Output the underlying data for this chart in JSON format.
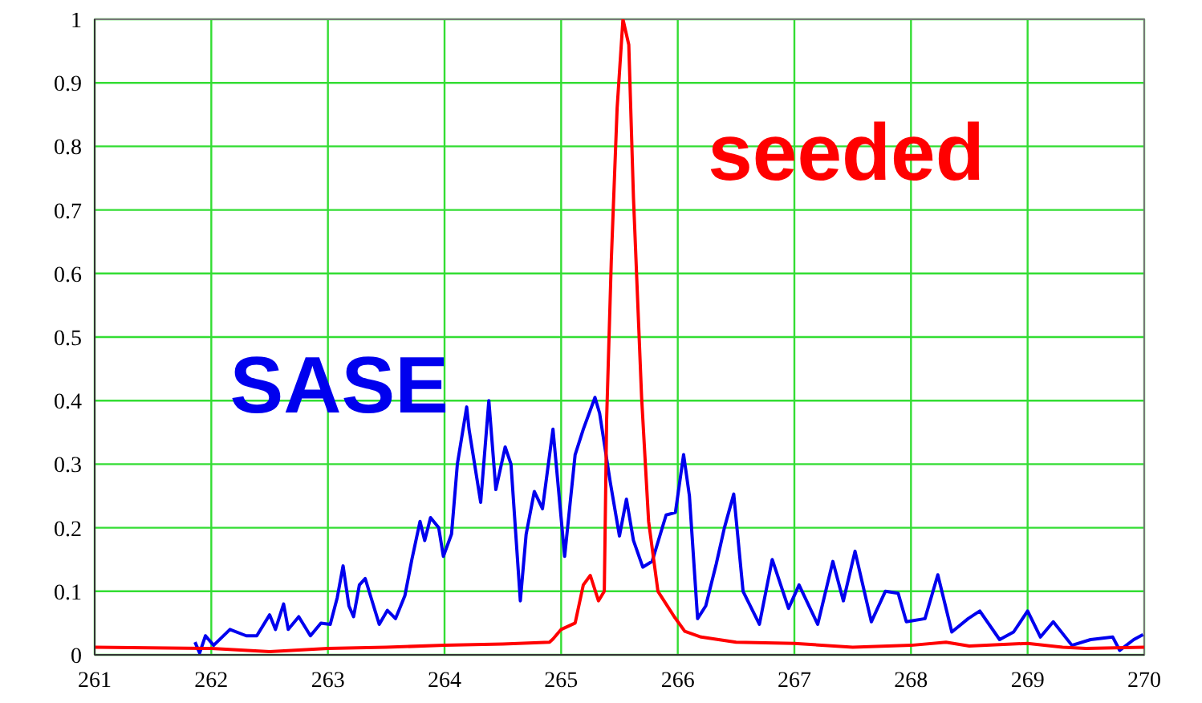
{
  "chart_data": {
    "type": "line",
    "xlim": [
      261,
      270
    ],
    "xticks": [
      261,
      262,
      263,
      264,
      265,
      266,
      267,
      268,
      269,
      270
    ],
    "ylim": [
      0,
      1
    ],
    "yticks": [
      0,
      0.1,
      0.2,
      0.3,
      0.4,
      0.5,
      0.6,
      0.7,
      0.8,
      0.9,
      1
    ],
    "grid": true,
    "marker": "none",
    "line_style": "solid",
    "series": [
      {
        "name": "SASE",
        "color": "#0000ee",
        "x": [
          261.86,
          261.9,
          261.95,
          262.02,
          262.16,
          262.3,
          262.39,
          262.5,
          262.55,
          262.62,
          262.66,
          262.75,
          262.85,
          262.94,
          263.02,
          263.08,
          263.13,
          263.18,
          263.22,
          263.27,
          263.32,
          263.37,
          263.44,
          263.51,
          263.58,
          263.66,
          263.72,
          263.79,
          263.83,
          263.88,
          263.95,
          263.99,
          264.06,
          264.11,
          264.19,
          264.21,
          264.31,
          264.38,
          264.44,
          264.52,
          264.57,
          264.65,
          264.7,
          264.77,
          264.84,
          264.93,
          265.03,
          265.12,
          265.19,
          265.29,
          265.33,
          265.42,
          265.5,
          265.56,
          265.62,
          265.7,
          265.78,
          265.9,
          265.98,
          266.05,
          266.1,
          266.17,
          266.24,
          266.33,
          266.4,
          266.48,
          266.56,
          266.7,
          266.81,
          266.95,
          267.04,
          267.2,
          267.33,
          267.42,
          267.52,
          267.66,
          267.78,
          267.89,
          267.96,
          268.12,
          268.23,
          268.35,
          268.49,
          268.59,
          268.76,
          268.88,
          269,
          269.11,
          269.22,
          269.38,
          269.54,
          269.73,
          269.79,
          269.91,
          269.99
        ],
        "values": [
          0.02,
          0.003,
          0.03,
          0.015,
          0.04,
          0.03,
          0.03,
          0.063,
          0.04,
          0.08,
          0.04,
          0.06,
          0.03,
          0.05,
          0.048,
          0.09,
          0.14,
          0.077,
          0.06,
          0.11,
          0.12,
          0.09,
          0.048,
          0.07,
          0.057,
          0.093,
          0.15,
          0.21,
          0.18,
          0.216,
          0.2,
          0.155,
          0.19,
          0.3,
          0.39,
          0.355,
          0.24,
          0.4,
          0.26,
          0.327,
          0.3,
          0.085,
          0.19,
          0.257,
          0.23,
          0.355,
          0.155,
          0.315,
          0.355,
          0.405,
          0.38,
          0.273,
          0.187,
          0.245,
          0.18,
          0.138,
          0.147,
          0.22,
          0.224,
          0.315,
          0.25,
          0.057,
          0.077,
          0.143,
          0.2,
          0.253,
          0.1,
          0.048,
          0.15,
          0.073,
          0.11,
          0.048,
          0.147,
          0.085,
          0.163,
          0.052,
          0.1,
          0.097,
          0.052,
          0.057,
          0.126,
          0.036,
          0.057,
          0.069,
          0.024,
          0.036,
          0.069,
          0.028,
          0.052,
          0.015,
          0.024,
          0.028,
          0.007,
          0.024,
          0.032
        ]
      },
      {
        "name": "seeded",
        "color": "#ff0000",
        "x": [
          261,
          262,
          262.5,
          263,
          263.5,
          264,
          264.5,
          264.9,
          264.93,
          265,
          265.12,
          265.19,
          265.25,
          265.32,
          265.37,
          265.39,
          265.43,
          265.48,
          265.53,
          265.58,
          265.62,
          265.69,
          265.75,
          265.83,
          265.97,
          266.06,
          266.2,
          266.5,
          267,
          267.5,
          268,
          268.3,
          268.5,
          269,
          269.3,
          269.5,
          270
        ],
        "values": [
          0.012,
          0.01,
          0.005,
          0.01,
          0.012,
          0.015,
          0.017,
          0.02,
          0.025,
          0.04,
          0.05,
          0.11,
          0.125,
          0.085,
          0.1,
          0.37,
          0.62,
          0.86,
          1,
          0.96,
          0.72,
          0.405,
          0.21,
          0.1,
          0.06,
          0.037,
          0.028,
          0.02,
          0.018,
          0.012,
          0.015,
          0.02,
          0.014,
          0.018,
          0.012,
          0.01,
          0.012
        ]
      }
    ]
  }
}
